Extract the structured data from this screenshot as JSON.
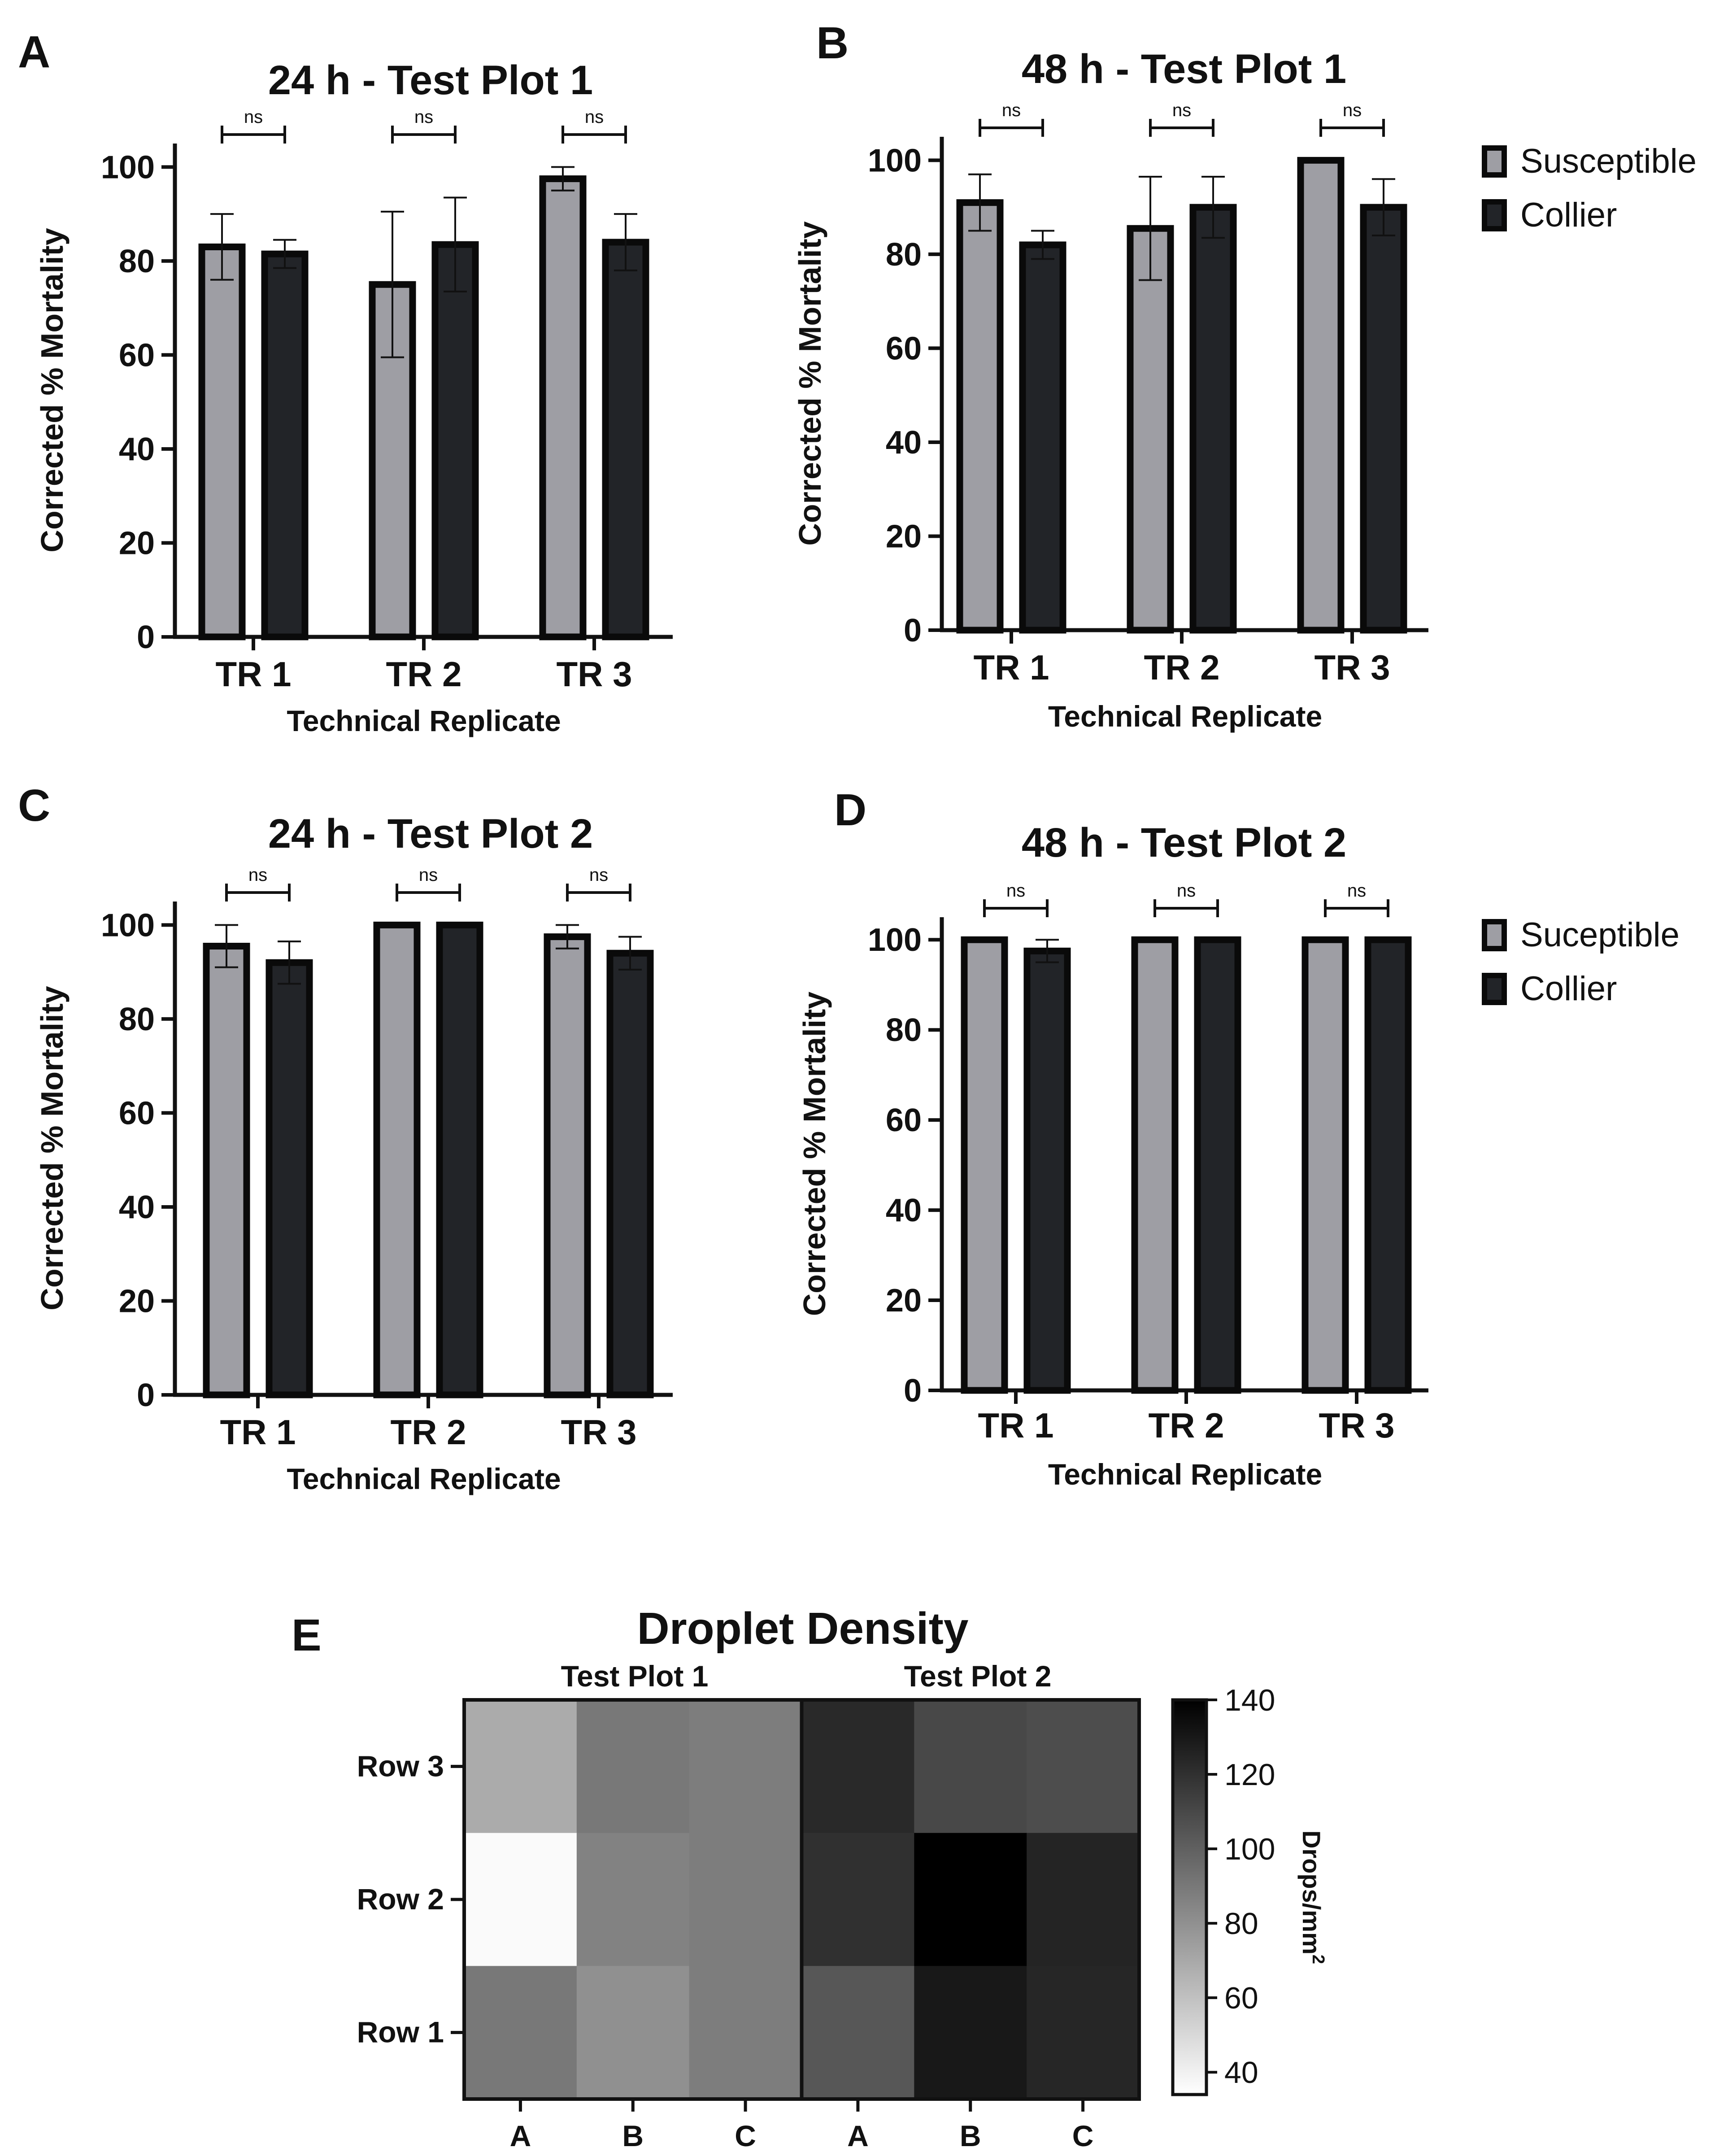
{
  "figure": {
    "panels": [
      "A",
      "B",
      "C",
      "D",
      "E"
    ]
  },
  "chart_data": [
    {
      "type": "bar",
      "panel": "A",
      "title": "24 h - Test Plot 1",
      "xlabel": "Technical Replicate",
      "ylabel": "Corrected % Mortality",
      "categories": [
        "TR 1",
        "TR 2",
        "TR 3"
      ],
      "ylim": [
        0,
        105
      ],
      "yticks": [
        0,
        20,
        40,
        60,
        80,
        100
      ],
      "series": [
        {
          "name": "Susceptible",
          "color": "#9e9ea4",
          "values": [
            83,
            75,
            97.5
          ],
          "errors": [
            7,
            15.5,
            2.5
          ]
        },
        {
          "name": "Collier",
          "color": "#222428",
          "values": [
            81.5,
            83.5,
            84
          ],
          "errors": [
            3,
            10,
            6
          ]
        }
      ],
      "significance": [
        "ns",
        "ns",
        "ns"
      ]
    },
    {
      "type": "bar",
      "panel": "B",
      "title": "48 h - Test Plot 1",
      "xlabel": "Technical Replicate",
      "ylabel": "Corrected % Mortality",
      "categories": [
        "TR 1",
        "TR 2",
        "TR 3"
      ],
      "ylim": [
        0,
        105
      ],
      "yticks": [
        0,
        20,
        40,
        60,
        80,
        100
      ],
      "series": [
        {
          "name": "Susceptible",
          "color": "#9e9ea4",
          "values": [
            91,
            85.5,
            100
          ],
          "errors": [
            6,
            11,
            0
          ]
        },
        {
          "name": "Collier",
          "color": "#222428",
          "values": [
            82,
            90,
            90
          ],
          "errors": [
            3,
            6.5,
            6
          ]
        }
      ],
      "significance": [
        "ns",
        "ns",
        "ns"
      ],
      "legend": [
        "Susceptible",
        "Collier"
      ]
    },
    {
      "type": "bar",
      "panel": "C",
      "title": "24 h - Test Plot 2",
      "xlabel": "Technical Replicate",
      "ylabel": "Corrected % Mortality",
      "categories": [
        "TR 1",
        "TR 2",
        "TR 3"
      ],
      "ylim": [
        0,
        105
      ],
      "yticks": [
        0,
        20,
        40,
        60,
        80,
        100
      ],
      "series": [
        {
          "name": "Susceptible",
          "color": "#9e9ea4",
          "values": [
            95.5,
            100,
            97.5
          ],
          "errors": [
            4.5,
            0,
            2.5
          ]
        },
        {
          "name": "Collier",
          "color": "#222428",
          "values": [
            92,
            100,
            94
          ],
          "errors": [
            4.5,
            0,
            3.5
          ]
        }
      ],
      "significance": [
        "ns",
        "ns",
        "ns"
      ]
    },
    {
      "type": "bar",
      "panel": "D",
      "title": "48 h - Test Plot 2",
      "xlabel": "Technical Replicate",
      "ylabel": "Corrected % Mortality",
      "categories": [
        "TR 1",
        "TR 2",
        "TR 3"
      ],
      "ylim": [
        0,
        105
      ],
      "yticks": [
        0,
        20,
        40,
        60,
        80,
        100
      ],
      "series": [
        {
          "name": "Suceptible",
          "color": "#9e9ea4",
          "values": [
            100,
            100,
            100
          ],
          "errors": [
            0,
            0,
            0
          ]
        },
        {
          "name": "Collier",
          "color": "#222428",
          "values": [
            97.5,
            100,
            100
          ],
          "errors": [
            2.5,
            0,
            0
          ]
        }
      ],
      "significance": [
        "ns",
        "ns",
        "ns"
      ],
      "legend": [
        "Suceptible",
        "Collier"
      ]
    },
    {
      "type": "heatmap",
      "panel": "E",
      "title": "Droplet Density",
      "groups": [
        "Test Plot 1",
        "Test Plot 2"
      ],
      "columns": [
        "A",
        "B",
        "C",
        "A",
        "B",
        "C"
      ],
      "rows": [
        "Row 3",
        "Row 2",
        "Row 1"
      ],
      "values": [
        [
          69,
          90,
          88,
          123,
          110,
          108
        ],
        [
          36,
          86,
          88,
          120,
          140,
          125
        ],
        [
          90,
          80,
          88,
          104,
          130,
          124
        ]
      ],
      "colorbar": {
        "label": "Drops/mm",
        "label_sup": "2",
        "ticks": [
          40,
          60,
          80,
          100,
          120,
          140
        ],
        "range": [
          34,
          140
        ]
      }
    }
  ]
}
